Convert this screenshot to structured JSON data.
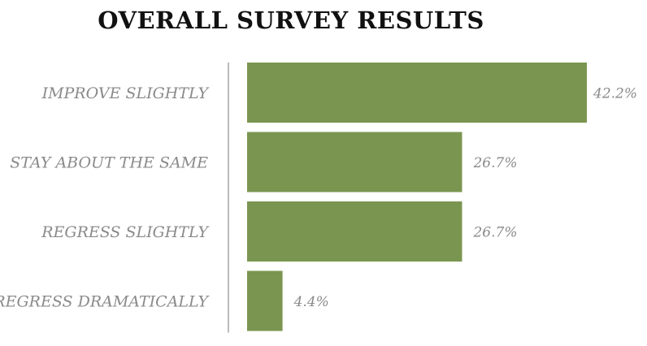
{
  "chart_data": {
    "type": "bar",
    "orientation": "horizontal",
    "title": "OVERALL SURVEY RESULTS",
    "categories": [
      "IMPROVE SLIGHTLY",
      "STAY ABOUT THE SAME",
      "REGRESS SLIGHTLY",
      "REGRESS DRAMATICALLY"
    ],
    "values": [
      42.2,
      26.7,
      26.7,
      4.4
    ],
    "value_labels": [
      "42.2%",
      "26.7%",
      "26.7%",
      "4.4%"
    ],
    "xlim": [
      0,
      42.2
    ],
    "grid": false,
    "bar_color": "#7a9550",
    "axis_color": "#bbbbbb",
    "label_color": "#8a8a8a"
  }
}
